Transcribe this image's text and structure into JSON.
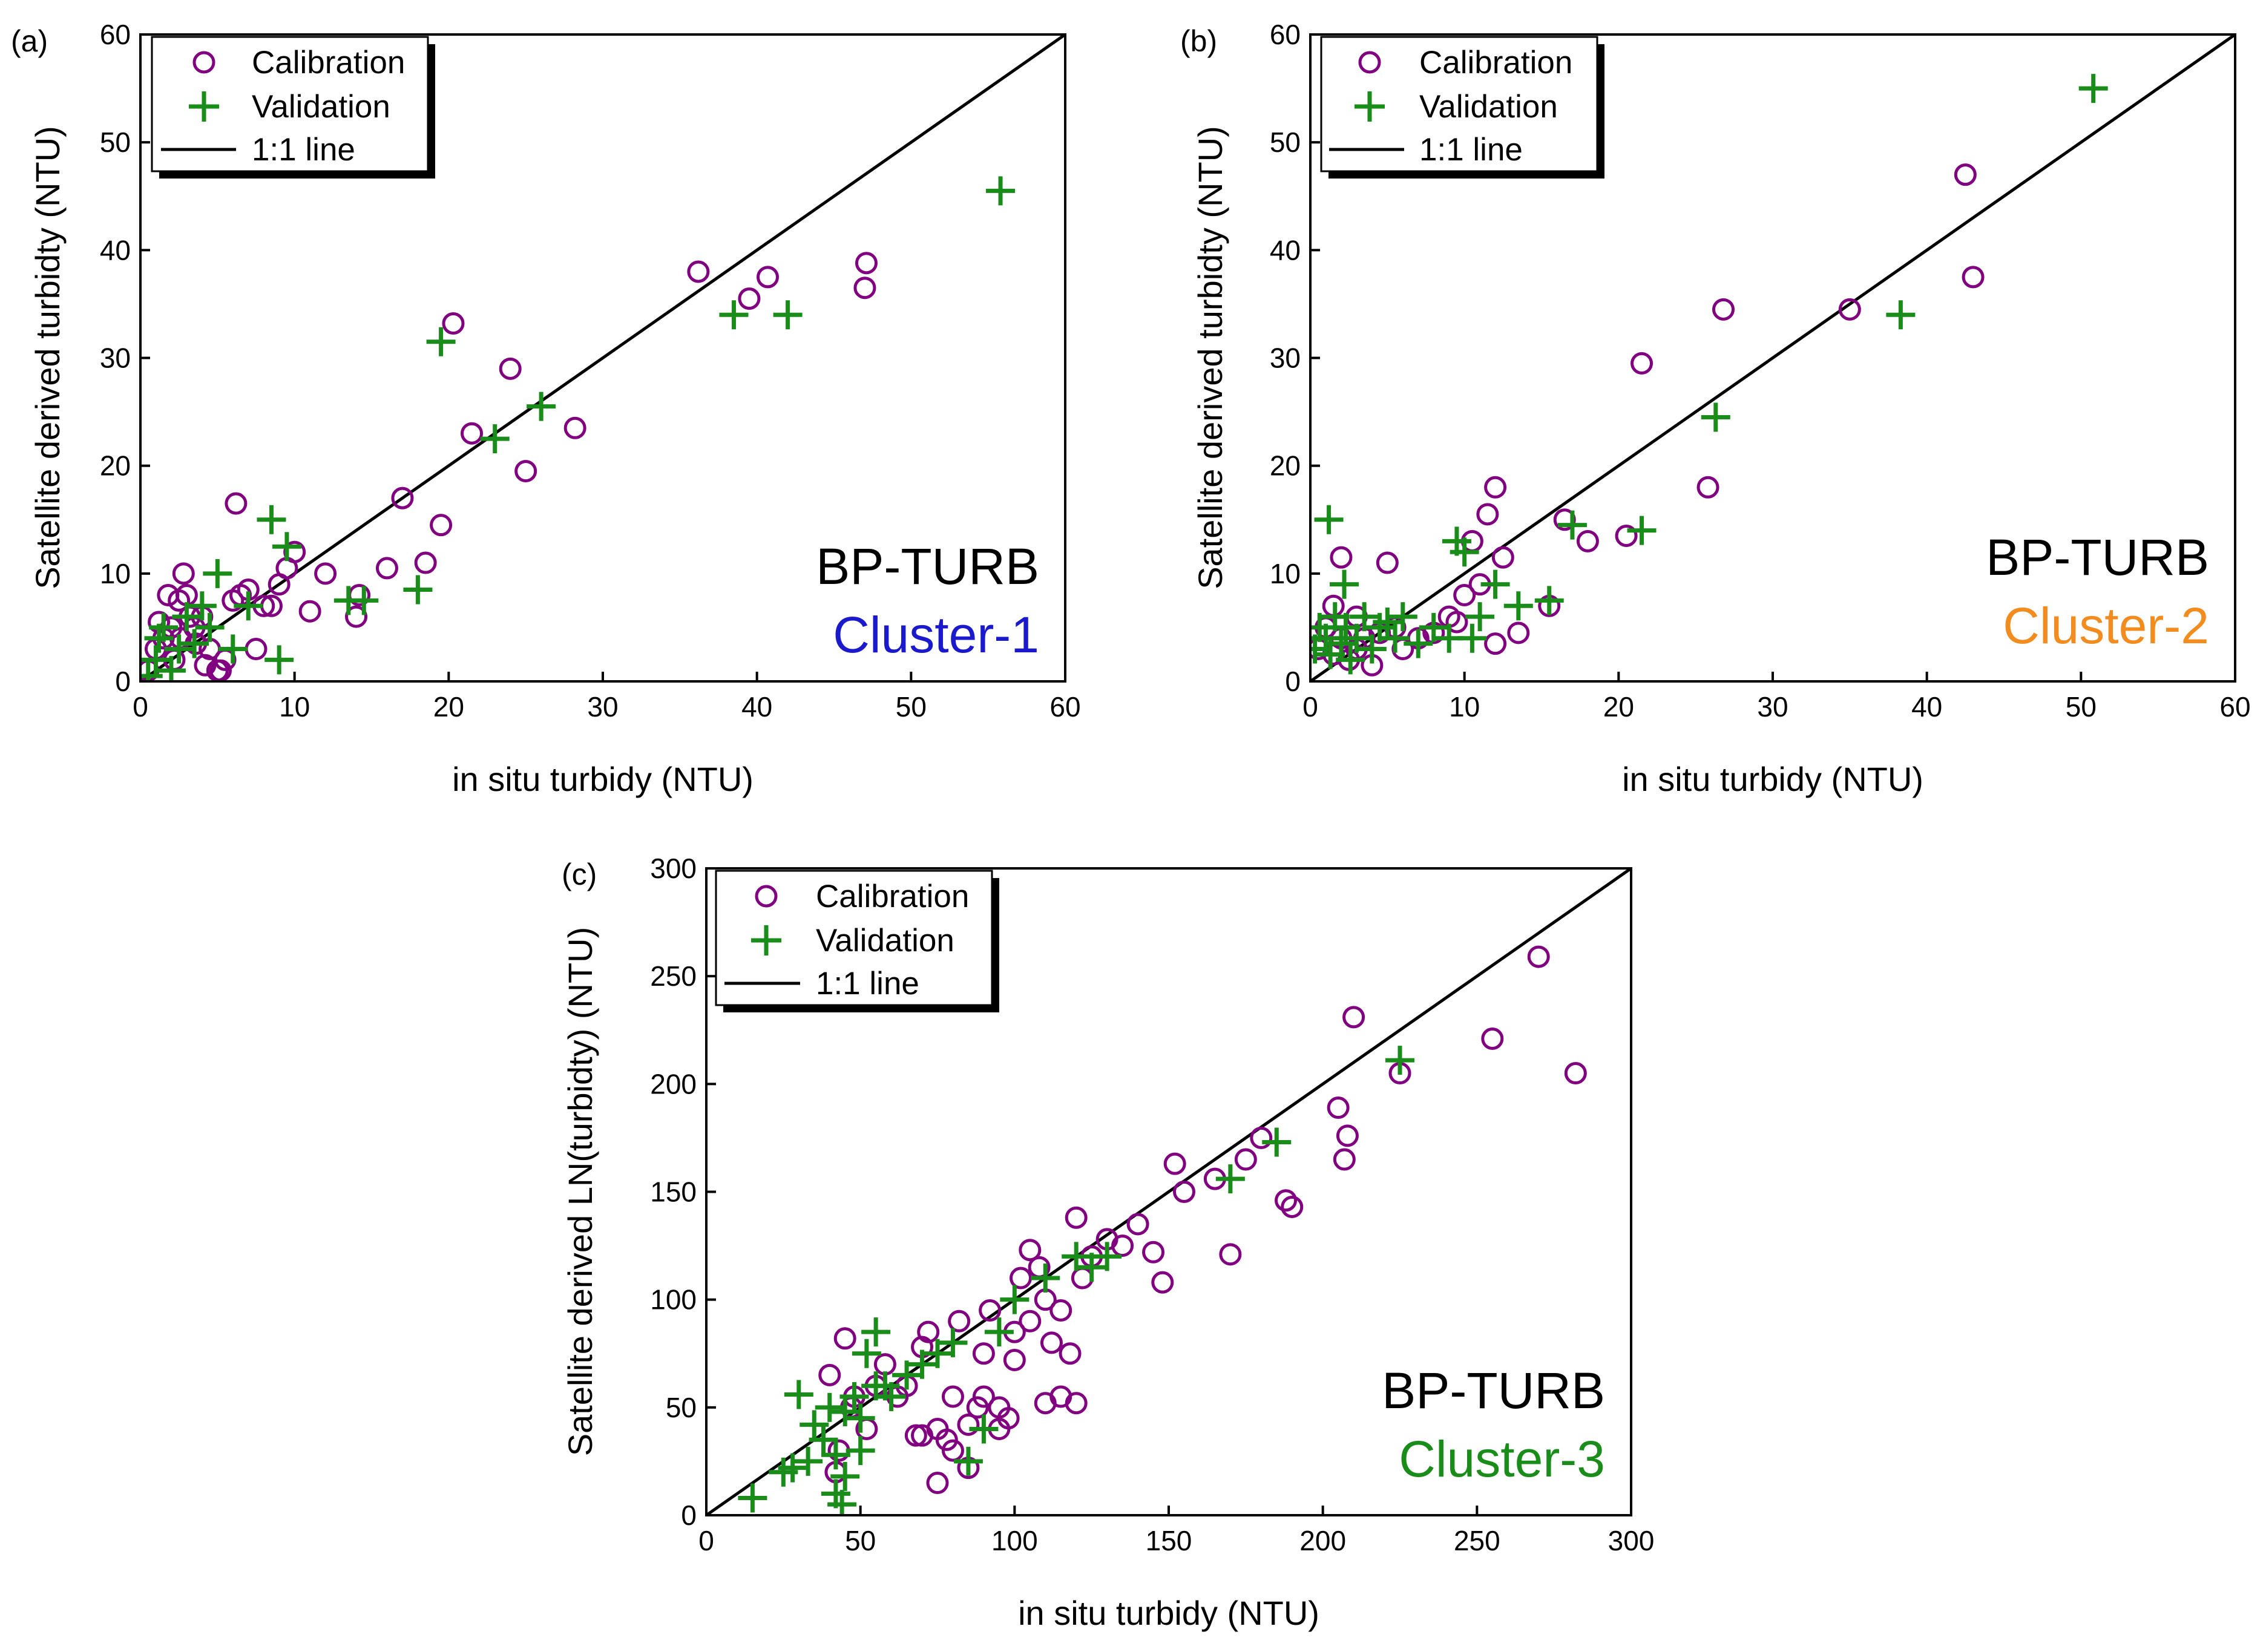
{
  "colors": {
    "calibration": "#800080",
    "validation": "#1a8c1a",
    "line": "#000000",
    "cluster1": "#1a1acc",
    "cluster2": "#f28c1e",
    "cluster3": "#1a8c1a"
  },
  "legend": {
    "calibration": "Calibration",
    "validation": "Validation",
    "line": "1:1 line"
  },
  "chart_data": [
    {
      "type": "scatter",
      "panel_label": "(a)",
      "xlabel": "in situ turbidy (NTU)",
      "ylabel": "Satellite derived turbidty (NTU)",
      "xlim": [
        0,
        60
      ],
      "ylim": [
        0,
        60
      ],
      "xticks": [
        "0",
        "10",
        "20",
        "30",
        "40",
        "50",
        "60"
      ],
      "yticks": [
        "0",
        "10",
        "20",
        "30",
        "40",
        "50",
        "60"
      ],
      "annotation": "BP-TURB",
      "cluster_label": "Cluster-1",
      "series": [
        {
          "name": "Calibration",
          "x": [
            0.5,
            1,
            1.5,
            2,
            2.5,
            3,
            3.5,
            4,
            4.5,
            5,
            5.5,
            6,
            6.5,
            7,
            7.5,
            8,
            8.5,
            9,
            9.5,
            10,
            11,
            12,
            1.2,
            2.2,
            2.8,
            3.2,
            4.2,
            5.2,
            1.8,
            2.6,
            3.6,
            6.2,
            14,
            14.2,
            16,
            17,
            18.5,
            19.5,
            20.3,
            21.5,
            24,
            25,
            28.2,
            36.2,
            39.5,
            40.7,
            47,
            47.1
          ],
          "y": [
            1,
            3,
            4,
            5,
            7.5,
            8,
            5,
            6,
            3,
            1,
            2,
            7.5,
            8,
            8.5,
            3,
            7,
            7,
            9,
            10.5,
            12,
            6.5,
            10,
            5.5,
            2,
            10,
            6,
            1.5,
            1,
            8,
            4,
            3.5,
            16.5,
            6,
            8,
            10.5,
            17,
            11,
            14.5,
            33.2,
            23,
            29,
            19.5,
            23.5,
            38,
            35.5,
            37.5,
            36.5,
            38.8
          ]
        },
        {
          "name": "Validation",
          "x": [
            0.5,
            1,
            1.5,
            2,
            2.5,
            3,
            3.5,
            4,
            5,
            6,
            7,
            8.5,
            9,
            9.5,
            13.5,
            14.5,
            18,
            19.5,
            23,
            26,
            38.5,
            42,
            55.8,
            4.5,
            1.2
          ],
          "y": [
            0.5,
            2,
            5,
            1,
            3,
            6,
            3.5,
            7,
            10,
            3,
            7,
            15,
            2,
            12.5,
            7.5,
            7.5,
            8.5,
            31.5,
            22.5,
            25.5,
            34,
            34,
            45.5,
            5,
            4
          ]
        }
      ]
    },
    {
      "type": "scatter",
      "panel_label": "(b)",
      "xlabel": "in situ turbidy (NTU)",
      "ylabel": "Satellite derived turbidty (NTU)",
      "xlim": [
        0,
        60
      ],
      "ylim": [
        0,
        60
      ],
      "xticks": [
        "0",
        "10",
        "20",
        "30",
        "40",
        "50",
        "60"
      ],
      "yticks": [
        "0",
        "10",
        "20",
        "30",
        "40",
        "50",
        "60"
      ],
      "annotation": "BP-TURB",
      "cluster_label": "Cluster-2",
      "series": [
        {
          "name": "Calibration",
          "x": [
            0.5,
            1,
            1.5,
            2,
            2.5,
            3,
            3.5,
            4,
            4.5,
            5,
            5.5,
            6,
            7,
            8,
            9,
            9.5,
            10,
            10.5,
            11,
            11.5,
            12,
            12.5,
            13.5,
            15.5,
            16.5,
            18,
            20.5,
            21.5,
            25.8,
            26.8,
            35,
            42.5,
            43,
            2,
            1.5,
            3,
            12
          ],
          "y": [
            3,
            5,
            2.5,
            4,
            2,
            6,
            4,
            1.5,
            4.5,
            11,
            5,
            3,
            4,
            4.5,
            6,
            5.5,
            8,
            13,
            9,
            15.5,
            18,
            11.5,
            4.5,
            7,
            15,
            13,
            13.5,
            29.5,
            18,
            34.5,
            34.5,
            47,
            37.5,
            11.5,
            7,
            3,
            3.5
          ]
        },
        {
          "name": "Validation",
          "x": [
            0.3,
            0.6,
            1,
            1.3,
            1.6,
            2,
            2.3,
            2.6,
            3,
            3.5,
            4,
            4.5,
            5,
            5.5,
            6,
            7,
            8,
            9,
            9.5,
            10,
            10.5,
            11,
            12,
            13.5,
            15.5,
            17,
            21.5,
            26.3,
            38.3,
            50.8,
            1.2,
            2.2
          ],
          "y": [
            3,
            5,
            4,
            2.5,
            6,
            3.5,
            5,
            2,
            4,
            6,
            3,
            5,
            5.5,
            4,
            6,
            3.5,
            5,
            4,
            13,
            12,
            4,
            6,
            9,
            7,
            7.5,
            14.5,
            14,
            24.5,
            34,
            55,
            15,
            9
          ]
        }
      ]
    },
    {
      "type": "scatter",
      "panel_label": "(c)",
      "xlabel": "in situ turbidy (NTU)",
      "ylabel": "Satellite derived LN(turbidty) (NTU)",
      "xlim": [
        0,
        300
      ],
      "ylim": [
        0,
        300
      ],
      "xticks": [
        "0",
        "50",
        "100",
        "150",
        "200",
        "250",
        "300"
      ],
      "yticks": [
        "0",
        "50",
        "100",
        "150",
        "200",
        "250",
        "300"
      ],
      "annotation": "BP-TURB",
      "cluster_label": "Cluster-3",
      "series": [
        {
          "name": "Calibration",
          "x": [
            40,
            45,
            48,
            52,
            55,
            58,
            62,
            65,
            68,
            70,
            72,
            75,
            78,
            80,
            82,
            85,
            88,
            90,
            92,
            95,
            98,
            100,
            102,
            105,
            108,
            110,
            112,
            115,
            118,
            120,
            122,
            125,
            130,
            135,
            140,
            145,
            148,
            152,
            155,
            165,
            170,
            175,
            180,
            188,
            190,
            205,
            207,
            208,
            210,
            225,
            255,
            270,
            282,
            70,
            75,
            80,
            85,
            90,
            95,
            100,
            105,
            110,
            115,
            120,
            47,
            42,
            43
          ],
          "y": [
            65,
            82,
            55,
            40,
            60,
            70,
            55,
            60,
            37,
            78,
            85,
            40,
            35,
            55,
            90,
            42,
            50,
            75,
            95,
            50,
            45,
            85,
            110,
            123,
            115,
            100,
            80,
            95,
            75,
            138,
            110,
            120,
            128,
            125,
            135,
            122,
            108,
            163,
            150,
            156,
            121,
            165,
            175,
            146,
            143,
            189,
            165,
            176,
            231,
            205,
            221,
            259,
            205,
            37,
            15,
            30,
            22,
            55,
            40,
            72,
            90,
            52,
            55,
            52,
            50,
            20,
            30
          ]
        },
        {
          "name": "Validation",
          "x": [
            15,
            25,
            28,
            30,
            33,
            35,
            38,
            40,
            42,
            44,
            45,
            48,
            50,
            52,
            55,
            58,
            60,
            65,
            70,
            75,
            80,
            85,
            90,
            95,
            100,
            110,
            120,
            125,
            130,
            170,
            185,
            225,
            42,
            45,
            50,
            55
          ],
          "y": [
            8,
            20,
            22,
            56,
            25,
            42,
            35,
            50,
            10,
            5,
            48,
            55,
            45,
            75,
            85,
            60,
            55,
            65,
            70,
            75,
            80,
            25,
            40,
            85,
            100,
            110,
            120,
            115,
            120,
            156,
            173,
            211,
            28,
            18,
            30,
            60
          ]
        }
      ]
    }
  ]
}
